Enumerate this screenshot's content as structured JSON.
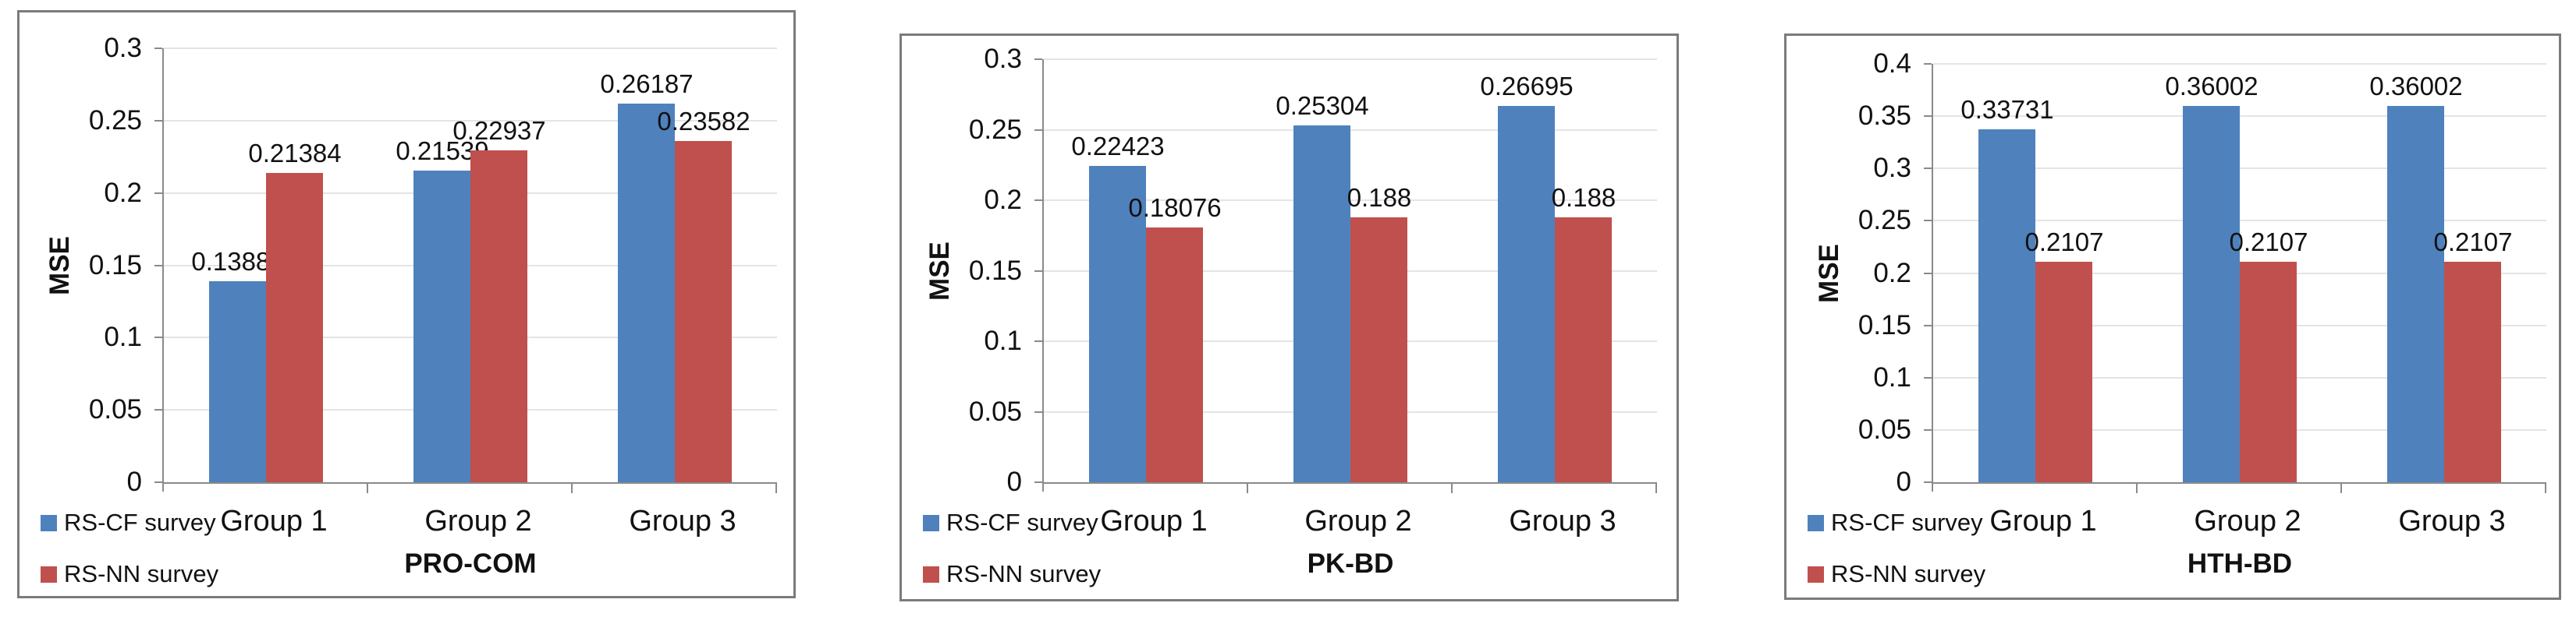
{
  "colors": {
    "series_rs_cf": "#4F81BD",
    "series_rs_nn": "#C0504D",
    "axis_line": "#8A8A8A",
    "gridline": "#E4E4E4",
    "panel_border": "#7B7B7B",
    "text": "#111111",
    "background": "#FFFFFF"
  },
  "chart_data": [
    {
      "type": "bar",
      "title": "",
      "xlabel": "PRO-COM",
      "ylabel": "MSE",
      "categories": [
        "Group 1",
        "Group 2",
        "Group 3"
      ],
      "series": [
        {
          "name": "RS-CF survey",
          "color": "#4F81BD",
          "values": [
            0.13885,
            0.21539,
            0.26187
          ],
          "labels": [
            "0.13885",
            "0.21539",
            "0.26187"
          ]
        },
        {
          "name": "RS-NN survey",
          "color": "#C0504D",
          "values": [
            0.21384,
            0.22937,
            0.23582
          ],
          "labels": [
            "0.21384",
            "0.22937",
            "0.23582"
          ]
        }
      ],
      "ylim": [
        0,
        0.3
      ],
      "yticks": [
        "0",
        "0.05",
        "0.1",
        "0.15",
        "0.2",
        "0.25",
        "0.3"
      ],
      "grid": true,
      "data_labels": "outside-end",
      "legend": [
        "RS-CF survey",
        "RS-NN survey"
      ],
      "legend_position": "bottom-left"
    },
    {
      "type": "bar",
      "title": "",
      "xlabel": "PK-BD",
      "ylabel": "MSE",
      "categories": [
        "Group 1",
        "Group 2",
        "Group 3"
      ],
      "series": [
        {
          "name": "RS-CF survey",
          "color": "#4F81BD",
          "values": [
            0.22423,
            0.25304,
            0.26695
          ],
          "labels": [
            "0.22423",
            "0.25304",
            "0.26695"
          ]
        },
        {
          "name": "RS-NN survey",
          "color": "#C0504D",
          "values": [
            0.18076,
            0.188,
            0.188
          ],
          "labels": [
            "0.18076",
            "0.188",
            "0.188"
          ]
        }
      ],
      "ylim": [
        0,
        0.3
      ],
      "yticks": [
        "0",
        "0.05",
        "0.1",
        "0.15",
        "0.2",
        "0.25",
        "0.3"
      ],
      "grid": true,
      "data_labels": "outside-end",
      "legend": [
        "RS-CF survey",
        "RS-NN survey"
      ],
      "legend_position": "bottom-left"
    },
    {
      "type": "bar",
      "title": "",
      "xlabel": "HTH-BD",
      "ylabel": "MSE",
      "categories": [
        "Group 1",
        "Group 2",
        "Group 3"
      ],
      "series": [
        {
          "name": "RS-CF survey",
          "color": "#4F81BD",
          "values": [
            0.33731,
            0.36002,
            0.36002
          ],
          "labels": [
            "0.33731",
            "0.36002",
            "0.36002"
          ]
        },
        {
          "name": "RS-NN survey",
          "color": "#C0504D",
          "values": [
            0.2107,
            0.2107,
            0.2107
          ],
          "labels": [
            "0.2107",
            "0.2107",
            "0.2107"
          ]
        }
      ],
      "ylim": [
        0,
        0.4
      ],
      "yticks": [
        "0",
        "0.05",
        "0.1",
        "0.15",
        "0.2",
        "0.25",
        "0.3",
        "0.35",
        "0.4"
      ],
      "grid": true,
      "data_labels": "outside-end",
      "legend": [
        "RS-CF survey",
        "RS-NN survey"
      ],
      "legend_position": "bottom-left"
    }
  ]
}
